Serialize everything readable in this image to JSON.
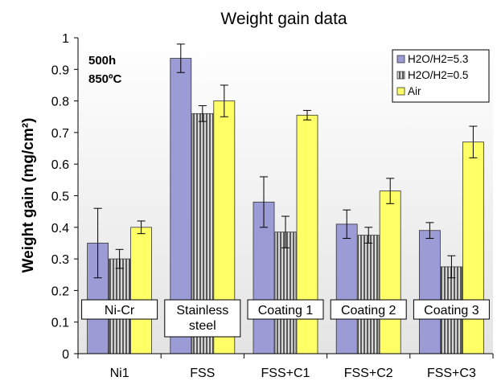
{
  "chart_data": {
    "type": "bar",
    "title": "Weight gain data",
    "xlabel": "",
    "ylabel": "Weight gain (mg/cm²)",
    "ylim": [
      0,
      1
    ],
    "yticks": [
      "0",
      "0.1",
      "0.2",
      "0.3",
      "0.4",
      "0.5",
      "0.6",
      "0.7",
      "0.8",
      "0.9",
      "1"
    ],
    "categories": [
      "Ni1",
      "FSS",
      "FSS+C1",
      "FSS+C2",
      "FSS+C3"
    ],
    "category_boxes": [
      [
        "Ni-Cr"
      ],
      [
        "Stainless",
        "steel"
      ],
      [
        "Coating 1"
      ],
      [
        "Coating 2"
      ],
      [
        "Coating 3"
      ]
    ],
    "annotation": [
      "500h",
      "850ºC"
    ],
    "grid": false,
    "legend_position": "top-right",
    "series": [
      {
        "name": "H2O/H2=5.3",
        "color": "#9b9bd6",
        "pattern": "solid",
        "values": [
          0.35,
          0.935,
          0.48,
          0.41,
          0.39
        ],
        "errors": [
          0.11,
          0.045,
          0.08,
          0.045,
          0.025
        ]
      },
      {
        "name": "H2O/H2=0.5",
        "color": "#8f8f8f",
        "pattern": "vertical-stripes",
        "values": [
          0.3,
          0.76,
          0.385,
          0.375,
          0.275
        ],
        "errors": [
          0.03,
          0.025,
          0.05,
          0.025,
          0.035
        ]
      },
      {
        "name": "Air",
        "color": "#ffff66",
        "pattern": "solid",
        "values": [
          0.4,
          0.8,
          0.755,
          0.515,
          0.67
        ],
        "errors": [
          0.02,
          0.05,
          0.015,
          0.04,
          0.05
        ]
      }
    ]
  }
}
